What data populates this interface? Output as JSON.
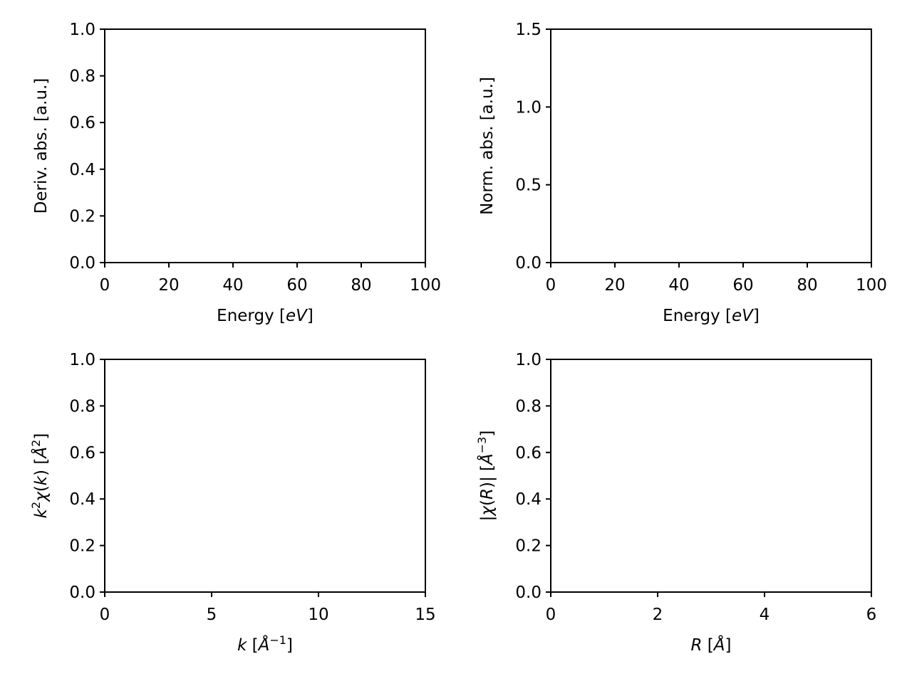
{
  "chart_data": [
    {
      "type": "line",
      "title": "",
      "xlabel": "Energy [eV]",
      "xlabel_parts": [
        {
          "text": "Energy [",
          "italic": false
        },
        {
          "text": "eV",
          "italic": true
        },
        {
          "text": "]",
          "italic": false
        }
      ],
      "ylabel": "Deriv. abs. [a.u.]",
      "ylabel_parts": [
        {
          "text": "Deriv. abs. [a.u.]",
          "italic": false
        }
      ],
      "xlim": [
        0,
        100
      ],
      "ylim": [
        0,
        1.0
      ],
      "xticks": [
        0,
        20,
        40,
        60,
        80,
        100
      ],
      "xtick_labels": [
        "0",
        "20",
        "40",
        "60",
        "80",
        "100"
      ],
      "yticks": [
        0,
        0.2,
        0.4,
        0.6,
        0.8,
        1.0
      ],
      "ytick_labels": [
        "0.0",
        "0.2",
        "0.4",
        "0.6",
        "0.8",
        "1.0"
      ],
      "grid": false,
      "series": []
    },
    {
      "type": "line",
      "title": "",
      "xlabel": "Energy [eV]",
      "xlabel_parts": [
        {
          "text": "Energy [",
          "italic": false
        },
        {
          "text": "eV",
          "italic": true
        },
        {
          "text": "]",
          "italic": false
        }
      ],
      "ylabel": "Norm. abs. [a.u.]",
      "ylabel_parts": [
        {
          "text": "Norm. abs. [a.u.]",
          "italic": false
        }
      ],
      "xlim": [
        0,
        100
      ],
      "ylim": [
        0,
        1.5
      ],
      "xticks": [
        0,
        20,
        40,
        60,
        80,
        100
      ],
      "xtick_labels": [
        "0",
        "20",
        "40",
        "60",
        "80",
        "100"
      ],
      "yticks": [
        0,
        0.5,
        1.0,
        1.5
      ],
      "ytick_labels": [
        "0.0",
        "0.5",
        "1.0",
        "1.5"
      ],
      "grid": false,
      "series": []
    },
    {
      "type": "line",
      "title": "",
      "xlabel": "k [Å⁻¹]",
      "xlabel_parts": [
        {
          "text": "k",
          "italic": true
        },
        {
          "text": " [",
          "italic": false
        },
        {
          "text": "Å",
          "italic": true
        },
        {
          "text": "−1",
          "italic": false,
          "sup": true
        },
        {
          "text": "]",
          "italic": false
        }
      ],
      "ylabel": "k²χ(k) [Å²]",
      "ylabel_parts": [
        {
          "text": "k",
          "italic": true
        },
        {
          "text": "2",
          "italic": false,
          "sup": true
        },
        {
          "text": "χ",
          "italic": true
        },
        {
          "text": "(",
          "italic": false
        },
        {
          "text": "k",
          "italic": true
        },
        {
          "text": ") [",
          "italic": false
        },
        {
          "text": "Å",
          "italic": true
        },
        {
          "text": "2",
          "italic": false,
          "sup": true
        },
        {
          "text": "]",
          "italic": false
        }
      ],
      "xlim": [
        0,
        15
      ],
      "ylim": [
        0,
        1.0
      ],
      "xticks": [
        0,
        5,
        10,
        15
      ],
      "xtick_labels": [
        "0",
        "5",
        "10",
        "15"
      ],
      "yticks": [
        0,
        0.2,
        0.4,
        0.6,
        0.8,
        1.0
      ],
      "ytick_labels": [
        "0.0",
        "0.2",
        "0.4",
        "0.6",
        "0.8",
        "1.0"
      ],
      "grid": false,
      "series": []
    },
    {
      "type": "line",
      "title": "",
      "xlabel": "R [Å]",
      "xlabel_parts": [
        {
          "text": "R",
          "italic": true
        },
        {
          "text": " [",
          "italic": false
        },
        {
          "text": "Å",
          "italic": true
        },
        {
          "text": "]",
          "italic": false
        }
      ],
      "ylabel": "|χ(R)|  [Å⁻³]",
      "ylabel_parts": [
        {
          "text": "|",
          "italic": false
        },
        {
          "text": "χ",
          "italic": true
        },
        {
          "text": "(",
          "italic": false
        },
        {
          "text": "R",
          "italic": true
        },
        {
          "text": ")|  [",
          "italic": false
        },
        {
          "text": "Å",
          "italic": true
        },
        {
          "text": "−3",
          "italic": false,
          "sup": true
        },
        {
          "text": "]",
          "italic": false
        }
      ],
      "xlim": [
        0,
        6
      ],
      "ylim": [
        0,
        1.0
      ],
      "xticks": [
        0,
        2,
        4,
        6
      ],
      "xtick_labels": [
        "0",
        "2",
        "4",
        "6"
      ],
      "yticks": [
        0,
        0.2,
        0.4,
        0.6,
        0.8,
        1.0
      ],
      "ytick_labels": [
        "0.0",
        "0.2",
        "0.4",
        "0.6",
        "0.8",
        "1.0"
      ],
      "grid": false,
      "series": []
    }
  ]
}
